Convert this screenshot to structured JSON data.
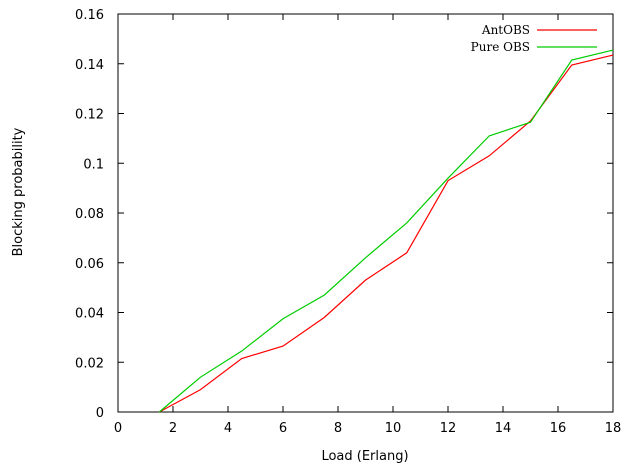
{
  "chart_data": {
    "type": "line",
    "title": "",
    "xlabel": "Load (Erlang)",
    "ylabel": "Blocking probability",
    "xlim": [
      0,
      18
    ],
    "ylim": [
      0,
      0.16
    ],
    "xticks": [
      "0",
      "2",
      "4",
      "6",
      "8",
      "10",
      "12",
      "14",
      "16",
      "18"
    ],
    "yticks": [
      "0",
      "0.02",
      "0.04",
      "0.06",
      "0.08",
      "0.1",
      "0.12",
      "0.14",
      "0.16"
    ],
    "grid": false,
    "legend_position": "top-right",
    "x": [
      1.5,
      3,
      4.5,
      6,
      7.5,
      9,
      10.5,
      12,
      13.5,
      15,
      16.5,
      18
    ],
    "series": [
      {
        "name": "AntOBS",
        "color": "#ff0000",
        "values": [
          0.0,
          0.009,
          0.0215,
          0.0265,
          0.038,
          0.053,
          0.064,
          0.093,
          0.103,
          0.117,
          0.1395,
          0.1435
        ]
      },
      {
        "name": "Pure OBS",
        "color": "#00cc00",
        "values": [
          0.0,
          0.014,
          0.0245,
          0.0375,
          0.047,
          0.062,
          0.076,
          0.094,
          0.111,
          0.1165,
          0.1415,
          0.1455
        ]
      }
    ]
  }
}
